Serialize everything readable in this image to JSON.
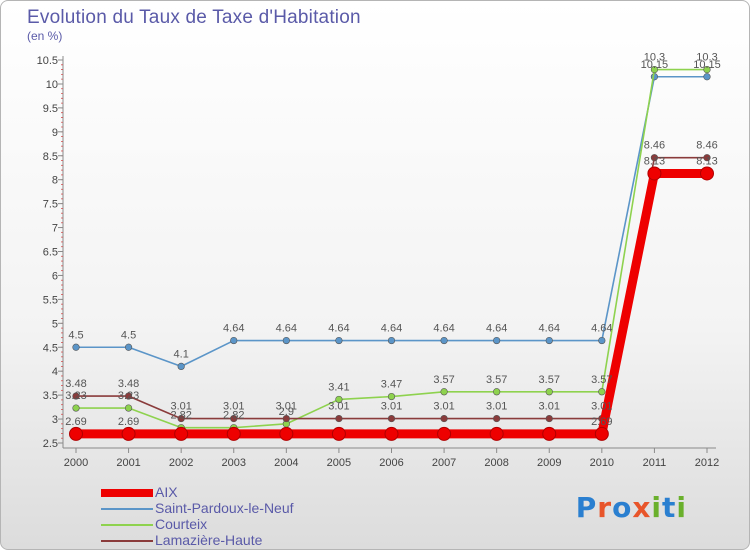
{
  "header": {
    "title": "Evolution du Taux de Taxe d'Habitation",
    "unit": "(en %)"
  },
  "logo": {
    "letters": [
      "P",
      "r",
      "o",
      "x",
      "i",
      "t",
      "i"
    ],
    "colors": [
      "#2a7fd0",
      "#e8552a",
      "#2a7fd0",
      "#e8552a",
      "#6ab02c",
      "#2a7fd0",
      "#6ab02c"
    ]
  },
  "chart_data": {
    "type": "line",
    "title": "Evolution du Taux de Taxe d'Habitation",
    "ylabel": "(en %)",
    "xlabel": "",
    "x": [
      "2000",
      "2001",
      "2002",
      "2003",
      "2004",
      "2005",
      "2006",
      "2007",
      "2008",
      "2009",
      "2010",
      "2011",
      "2012"
    ],
    "ylim": [
      2.5,
      10.5
    ],
    "yticks": [
      "2.5",
      "3",
      "3.5",
      "4",
      "4.5",
      "5",
      "5.5",
      "6",
      "6.5",
      "7",
      "7.5",
      "8",
      "8.5",
      "9",
      "9.5",
      "10",
      "10.5"
    ],
    "grid": false,
    "legend_position": "bottom-left",
    "series": [
      {
        "name": "AIX",
        "color": "#ee0000",
        "values": [
          2.69,
          2.69,
          2.69,
          2.69,
          2.69,
          2.69,
          2.69,
          2.69,
          2.69,
          2.69,
          2.69,
          8.13,
          8.13
        ],
        "labels": [
          "2.69",
          "2.69",
          "",
          "",
          "",
          "",
          "",
          "",
          "",
          "",
          "2.69",
          "8.13",
          "8.13"
        ]
      },
      {
        "name": "Saint-Pardoux-le-Neuf",
        "color": "#5b95c8",
        "values": [
          4.5,
          4.5,
          4.1,
          4.64,
          4.64,
          4.64,
          4.64,
          4.64,
          4.64,
          4.64,
          4.64,
          10.15,
          10.15
        ],
        "labels": [
          "4.5",
          "4.5",
          "4.1",
          "4.64",
          "4.64",
          "4.64",
          "4.64",
          "4.64",
          "4.64",
          "4.64",
          "4.64",
          "10.15",
          "10.15"
        ]
      },
      {
        "name": "Courteix",
        "color": "#8ed24e",
        "values": [
          3.23,
          3.23,
          2.82,
          2.82,
          2.9,
          3.41,
          3.47,
          3.57,
          3.57,
          3.57,
          3.57,
          10.3,
          10.3
        ],
        "labels": [
          "3.23",
          "3.23",
          "2.82",
          "2.82",
          "2.9",
          "3.41",
          "3.47",
          "3.57",
          "3.57",
          "3.57",
          "3.57",
          "10.3",
          "10.3"
        ]
      },
      {
        "name": "Lamazière-Haute",
        "color": "#8a3b3b",
        "values": [
          3.48,
          3.48,
          3.01,
          3.01,
          3.01,
          3.01,
          3.01,
          3.01,
          3.01,
          3.01,
          3.01,
          8.46,
          8.46
        ],
        "labels": [
          "3.48",
          "3.48",
          "3.01",
          "3.01",
          "3.01",
          "3.01",
          "3.01",
          "3.01",
          "3.01",
          "3.01",
          "3.01",
          "8.46",
          "8.46"
        ]
      }
    ]
  }
}
